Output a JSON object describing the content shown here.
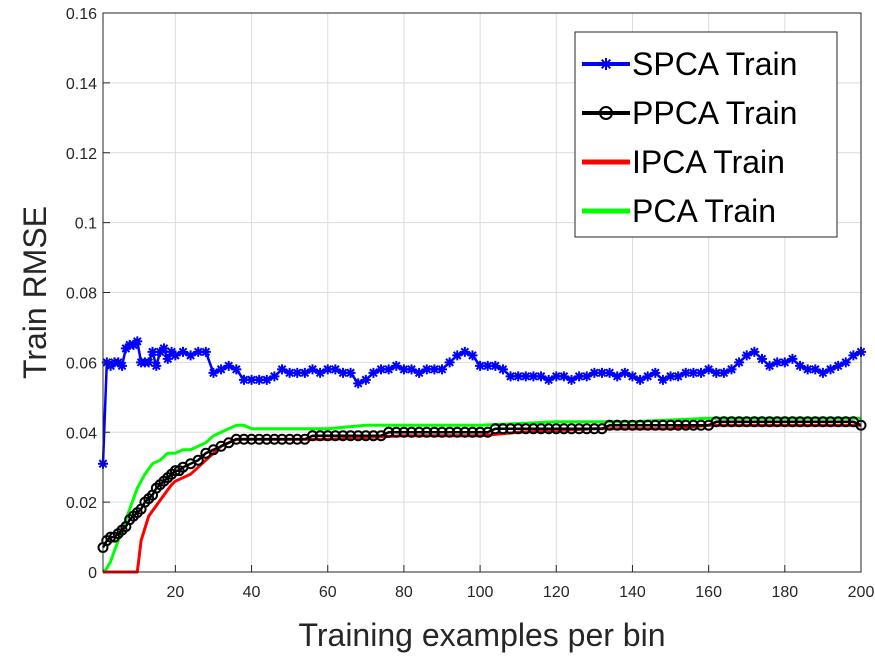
{
  "chart_data": {
    "type": "line",
    "title": "",
    "xlabel": "Training examples per bin",
    "ylabel": "Train RMSE",
    "xlim": [
      1,
      200
    ],
    "ylim": [
      0,
      0.16
    ],
    "grid": true,
    "legend_position": "top-right",
    "xticks": [
      20,
      40,
      60,
      80,
      100,
      120,
      140,
      160,
      180,
      200
    ],
    "xtick_labels": [
      "20",
      "40",
      "60",
      "80",
      "100",
      "120",
      "140",
      "160",
      "180",
      "200"
    ],
    "yticks": [
      0,
      0.02,
      0.04,
      0.06,
      0.08,
      0.1,
      0.12,
      0.14,
      0.16
    ],
    "ytick_labels": [
      "0",
      "0.02",
      "0.04",
      "0.06",
      "0.08",
      "0.1",
      "0.12",
      "0.14",
      "0.16"
    ],
    "series": [
      {
        "name": "SPCA Train",
        "color": "#0000ff",
        "marker": "asterisk",
        "x": [
          1,
          2,
          3,
          4,
          5,
          6,
          7,
          8,
          9,
          10,
          11,
          12,
          13,
          14,
          15,
          16,
          17,
          18,
          19,
          20,
          22,
          24,
          26,
          28,
          30,
          32,
          34,
          36,
          38,
          40,
          42,
          44,
          46,
          48,
          50,
          52,
          54,
          56,
          58,
          60,
          62,
          64,
          66,
          68,
          70,
          72,
          74,
          76,
          78,
          80,
          82,
          84,
          86,
          88,
          90,
          92,
          94,
          96,
          98,
          100,
          102,
          104,
          106,
          108,
          110,
          112,
          114,
          116,
          118,
          120,
          122,
          124,
          126,
          128,
          130,
          132,
          134,
          136,
          138,
          140,
          142,
          144,
          146,
          148,
          150,
          152,
          154,
          156,
          158,
          160,
          162,
          164,
          166,
          168,
          170,
          172,
          174,
          176,
          178,
          180,
          182,
          184,
          186,
          188,
          190,
          192,
          194,
          196,
          198,
          200
        ],
        "values": [
          0.031,
          0.06,
          0.059,
          0.06,
          0.06,
          0.059,
          0.064,
          0.065,
          0.065,
          0.066,
          0.06,
          0.06,
          0.06,
          0.063,
          0.059,
          0.063,
          0.064,
          0.061,
          0.063,
          0.062,
          0.063,
          0.062,
          0.063,
          0.063,
          0.057,
          0.058,
          0.059,
          0.058,
          0.055,
          0.055,
          0.055,
          0.055,
          0.056,
          0.058,
          0.057,
          0.057,
          0.057,
          0.058,
          0.057,
          0.058,
          0.058,
          0.057,
          0.057,
          0.054,
          0.055,
          0.057,
          0.058,
          0.058,
          0.059,
          0.058,
          0.058,
          0.057,
          0.058,
          0.058,
          0.058,
          0.06,
          0.062,
          0.063,
          0.062,
          0.059,
          0.059,
          0.059,
          0.058,
          0.056,
          0.056,
          0.056,
          0.056,
          0.056,
          0.055,
          0.056,
          0.056,
          0.055,
          0.056,
          0.056,
          0.057,
          0.057,
          0.057,
          0.056,
          0.057,
          0.056,
          0.055,
          0.056,
          0.057,
          0.055,
          0.056,
          0.056,
          0.057,
          0.057,
          0.057,
          0.058,
          0.057,
          0.057,
          0.058,
          0.06,
          0.062,
          0.063,
          0.061,
          0.059,
          0.06,
          0.06,
          0.061,
          0.059,
          0.058,
          0.058,
          0.057,
          0.058,
          0.059,
          0.06,
          0.062,
          0.063
        ]
      },
      {
        "name": "PPCA Train",
        "color": "#000000",
        "marker": "circle",
        "x": [
          1,
          2,
          3,
          4,
          5,
          6,
          7,
          8,
          9,
          10,
          11,
          12,
          13,
          14,
          15,
          16,
          17,
          18,
          19,
          20,
          21,
          22,
          24,
          26,
          28,
          30,
          32,
          34,
          36,
          38,
          40,
          42,
          44,
          46,
          48,
          50,
          52,
          54,
          56,
          58,
          60,
          62,
          64,
          66,
          68,
          70,
          72,
          74,
          76,
          78,
          80,
          82,
          84,
          86,
          88,
          90,
          92,
          94,
          96,
          98,
          100,
          102,
          104,
          106,
          108,
          110,
          112,
          114,
          116,
          118,
          120,
          122,
          124,
          126,
          128,
          130,
          132,
          134,
          136,
          138,
          140,
          142,
          144,
          146,
          148,
          150,
          152,
          154,
          156,
          158,
          160,
          162,
          164,
          166,
          168,
          170,
          172,
          174,
          176,
          178,
          180,
          182,
          184,
          186,
          188,
          190,
          192,
          194,
          196,
          198,
          200
        ],
        "values": [
          0.007,
          0.009,
          0.01,
          0.01,
          0.011,
          0.012,
          0.013,
          0.015,
          0.016,
          0.017,
          0.018,
          0.02,
          0.021,
          0.022,
          0.024,
          0.025,
          0.026,
          0.027,
          0.028,
          0.029,
          0.029,
          0.03,
          0.031,
          0.032,
          0.034,
          0.035,
          0.036,
          0.037,
          0.038,
          0.038,
          0.038,
          0.038,
          0.038,
          0.038,
          0.038,
          0.038,
          0.038,
          0.038,
          0.039,
          0.039,
          0.039,
          0.039,
          0.039,
          0.039,
          0.039,
          0.039,
          0.039,
          0.039,
          0.04,
          0.04,
          0.04,
          0.04,
          0.04,
          0.04,
          0.04,
          0.04,
          0.04,
          0.04,
          0.04,
          0.04,
          0.04,
          0.04,
          0.041,
          0.041,
          0.041,
          0.041,
          0.041,
          0.041,
          0.041,
          0.041,
          0.041,
          0.041,
          0.041,
          0.041,
          0.041,
          0.041,
          0.041,
          0.042,
          0.042,
          0.042,
          0.042,
          0.042,
          0.042,
          0.042,
          0.042,
          0.042,
          0.042,
          0.042,
          0.042,
          0.042,
          0.042,
          0.043,
          0.043,
          0.043,
          0.043,
          0.043,
          0.043,
          0.043,
          0.043,
          0.043,
          0.043,
          0.043,
          0.043,
          0.043,
          0.043,
          0.043,
          0.043,
          0.043,
          0.043,
          0.043,
          0.042
        ]
      },
      {
        "name": "IPCA Train",
        "color": "#ff0000",
        "marker": "none",
        "x": [
          1,
          10,
          11,
          13,
          15,
          17,
          19,
          20,
          22,
          24,
          26,
          28,
          30,
          32,
          34,
          36,
          40,
          50,
          60,
          80,
          100,
          110,
          130,
          150,
          160,
          200
        ],
        "values": [
          0,
          0,
          0.009,
          0.016,
          0.019,
          0.022,
          0.025,
          0.026,
          0.027,
          0.028,
          0.03,
          0.032,
          0.034,
          0.036,
          0.037,
          0.038,
          0.038,
          0.038,
          0.038,
          0.039,
          0.039,
          0.04,
          0.041,
          0.041,
          0.042,
          0.042
        ]
      },
      {
        "name": "PCA Train",
        "color": "#00ff00",
        "marker": "none",
        "x": [
          1,
          2,
          3,
          4,
          5,
          6,
          7,
          8,
          9,
          10,
          11,
          12,
          14,
          16,
          18,
          20,
          22,
          24,
          26,
          28,
          30,
          32,
          34,
          36,
          38,
          40,
          45,
          50,
          60,
          70,
          80,
          90,
          100,
          120,
          140,
          160,
          180,
          200
        ],
        "values": [
          0,
          0.001,
          0.003,
          0.006,
          0.009,
          0.012,
          0.015,
          0.018,
          0.021,
          0.024,
          0.026,
          0.028,
          0.031,
          0.032,
          0.034,
          0.034,
          0.035,
          0.035,
          0.036,
          0.037,
          0.039,
          0.04,
          0.041,
          0.042,
          0.042,
          0.041,
          0.041,
          0.041,
          0.041,
          0.042,
          0.042,
          0.042,
          0.042,
          0.043,
          0.043,
          0.044,
          0.044,
          0.044
        ]
      }
    ]
  }
}
